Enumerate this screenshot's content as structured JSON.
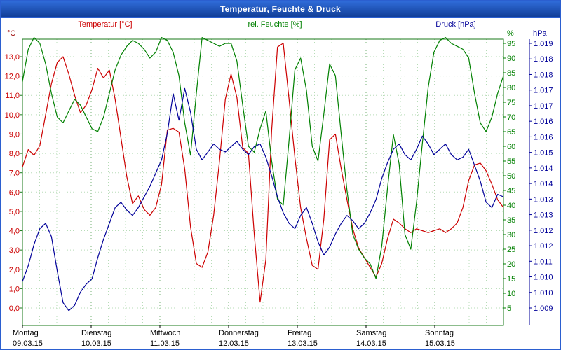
{
  "window": {
    "title": "Temperatur, Feuchte & Druck"
  },
  "chart_data": {
    "type": "line",
    "title": "Temperatur, Feuchte & Druck",
    "legend_position": "top",
    "grid": true,
    "sample_interval_hours": 2,
    "x_days": [
      {
        "name": "Montag",
        "date": "09.03.15"
      },
      {
        "name": "Dienstag",
        "date": "10.03.15"
      },
      {
        "name": "Mittwoch",
        "date": "11.03.15"
      },
      {
        "name": "Donnerstag",
        "date": "12.03.15"
      },
      {
        "name": "Freitag",
        "date": "13.03.15"
      },
      {
        "name": "Samstag",
        "date": "14.03.15"
      },
      {
        "name": "Sonntag",
        "date": "15.03.15"
      }
    ],
    "axes": {
      "temperature": {
        "unit": "°C",
        "color": "#cc0000",
        "min": 0.0,
        "max": 13.0,
        "labels": [
          "13,0",
          "12,0",
          "11,0",
          "10,0",
          "9,0",
          "8,0",
          "7,0",
          "6,0",
          "5,0",
          "4,0",
          "3,0",
          "2,0",
          "1,0",
          "0,0"
        ]
      },
      "humidity": {
        "unit": "%",
        "color": "#008000",
        "min": 0,
        "max": 95,
        "ticks": [
          95,
          90,
          85,
          80,
          75,
          70,
          65,
          60,
          55,
          50,
          45,
          40,
          35,
          30,
          25,
          20,
          15,
          10,
          5
        ]
      },
      "pressure": {
        "unit": "hPa",
        "color": "#000099",
        "min": 1.009,
        "max": 1.019,
        "labels": [
          "1.019",
          "1.018",
          "1.018",
          "1.017",
          "1.017",
          "1.016",
          "1.016",
          "1.015",
          "1.014",
          "1.014",
          "1.013",
          "1.013",
          "1.012",
          "1.012",
          "1.011",
          "1.010",
          "1.010",
          "1.009"
        ]
      }
    },
    "series": [
      {
        "name": "Temperatur [°C]",
        "axis": "temperature",
        "color": "#cc0000",
        "values": [
          7.3,
          8.2,
          7.9,
          8.4,
          10.0,
          11.6,
          12.7,
          13.0,
          12.1,
          11.0,
          10.1,
          10.5,
          11.3,
          12.4,
          11.9,
          12.3,
          10.8,
          8.8,
          6.8,
          5.4,
          5.8,
          5.1,
          4.8,
          5.2,
          6.4,
          9.2,
          9.3,
          9.1,
          7.2,
          4.2,
          2.3,
          2.1,
          2.9,
          4.8,
          7.6,
          10.8,
          12.1,
          10.9,
          8.3,
          8.0,
          3.8,
          0.3,
          2.5,
          9.2,
          13.5,
          13.7,
          10.8,
          7.8,
          5.2,
          3.6,
          2.2,
          2.0,
          4.6,
          8.7,
          9.0,
          7.2,
          5.6,
          4.1,
          3.1,
          2.6,
          2.1,
          1.6,
          2.3,
          3.6,
          4.6,
          4.4,
          4.1,
          3.9,
          4.1,
          4.0,
          3.9,
          4.0,
          4.1,
          3.9,
          4.1,
          4.4,
          5.2,
          6.6,
          7.4,
          7.5,
          7.1,
          6.4,
          5.6,
          5.2
        ]
      },
      {
        "name": "rel. Feuchte [%]",
        "axis": "humidity",
        "color": "#008000",
        "values": [
          82,
          93,
          97,
          95,
          88,
          78,
          70,
          68,
          72,
          76,
          74,
          70,
          66,
          65,
          70,
          78,
          86,
          91,
          94,
          96,
          95,
          93,
          90,
          92,
          97,
          96,
          92,
          84,
          68,
          57,
          78,
          97,
          96,
          95,
          94,
          95,
          95,
          89,
          74,
          60,
          58,
          66,
          72,
          55,
          42,
          40,
          62,
          86,
          90,
          79,
          60,
          55,
          71,
          88,
          84,
          64,
          45,
          30,
          25,
          22,
          20,
          15,
          26,
          46,
          64,
          54,
          30,
          25,
          41,
          61,
          80,
          92,
          96,
          97,
          95,
          94,
          93,
          90,
          78,
          68,
          65,
          70,
          78,
          84
        ]
      },
      {
        "name": "Druck [hPa]",
        "axis": "pressure",
        "color": "#000099",
        "values": [
          1.01,
          1.0106,
          1.0114,
          1.012,
          1.0122,
          1.0117,
          1.0104,
          1.0092,
          1.0089,
          1.0091,
          1.0096,
          1.0099,
          1.0101,
          1.0109,
          1.0116,
          1.0122,
          1.0128,
          1.013,
          1.0127,
          1.0125,
          1.0128,
          1.0132,
          1.0136,
          1.0141,
          1.0146,
          1.0156,
          1.0171,
          1.0161,
          1.0173,
          1.0164,
          1.015,
          1.0146,
          1.0149,
          1.0152,
          1.015,
          1.0149,
          1.0151,
          1.0153,
          1.015,
          1.0148,
          1.0151,
          1.0152,
          1.0147,
          1.014,
          1.0132,
          1.0126,
          1.0122,
          1.012,
          1.0125,
          1.0128,
          1.0122,
          1.0115,
          1.011,
          1.0113,
          1.0118,
          1.0122,
          1.0125,
          1.0123,
          1.012,
          1.0122,
          1.0126,
          1.0131,
          1.0139,
          1.0145,
          1.015,
          1.0152,
          1.0148,
          1.0146,
          1.015,
          1.0155,
          1.0152,
          1.0148,
          1.015,
          1.0152,
          1.0148,
          1.0146,
          1.0147,
          1.015,
          1.0144,
          1.0138,
          1.013,
          1.0128,
          1.0133,
          1.0132
        ]
      }
    ]
  }
}
